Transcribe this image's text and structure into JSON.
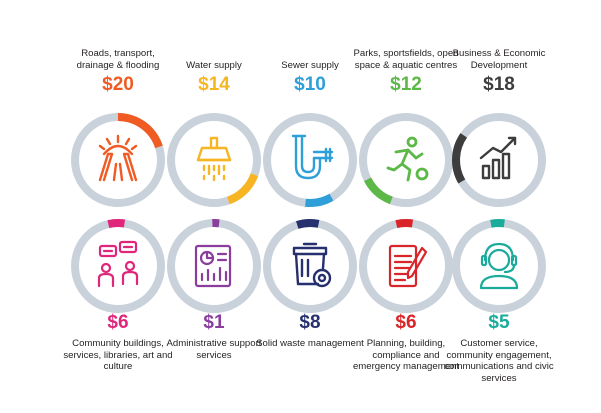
{
  "colors": {
    "ring_track": "#c9d1da",
    "background": "#ffffff"
  },
  "items": [
    {
      "label": "Roads, transport, drainage & flooding",
      "amount": "$20",
      "color": "#f05a23",
      "icon": "bridge-icon",
      "share": 0.2
    },
    {
      "label": "Water supply",
      "amount": "$14",
      "color": "#f7b524",
      "icon": "tap-icon",
      "share": 0.14
    },
    {
      "label": "Sewer supply",
      "amount": "$10",
      "color": "#2e9fd9",
      "icon": "pipe-icon",
      "share": 0.1
    },
    {
      "label": "Parks, sportsfields, open space & aquatic centres",
      "amount": "$12",
      "color": "#5cb847",
      "icon": "runner-icon",
      "share": 0.12
    },
    {
      "label": "Business & Economic Development",
      "amount": "$18",
      "color": "#3d3d3d",
      "icon": "growth-chart-icon",
      "share": 0.18
    },
    {
      "label": "Community buildings, services, libraries, art and culture",
      "amount": "$6",
      "color": "#e0267a",
      "icon": "community-icon",
      "share": 0.06
    },
    {
      "label": "Administrative support services",
      "amount": "$1",
      "color": "#8a3d9c",
      "icon": "report-icon",
      "share": 0.01
    },
    {
      "label": "Solid waste management",
      "amount": "$8",
      "color": "#27306e",
      "icon": "bin-icon",
      "share": 0.08
    },
    {
      "label": "Planning, building, compliance and emergency management",
      "amount": "$6",
      "color": "#d9252a",
      "icon": "document-pen-icon",
      "share": 0.06
    },
    {
      "label": "Customer service, community engagement, communications and civic services",
      "amount": "$5",
      "color": "#1aab9b",
      "icon": "headset-icon",
      "share": 0.05
    }
  ]
}
